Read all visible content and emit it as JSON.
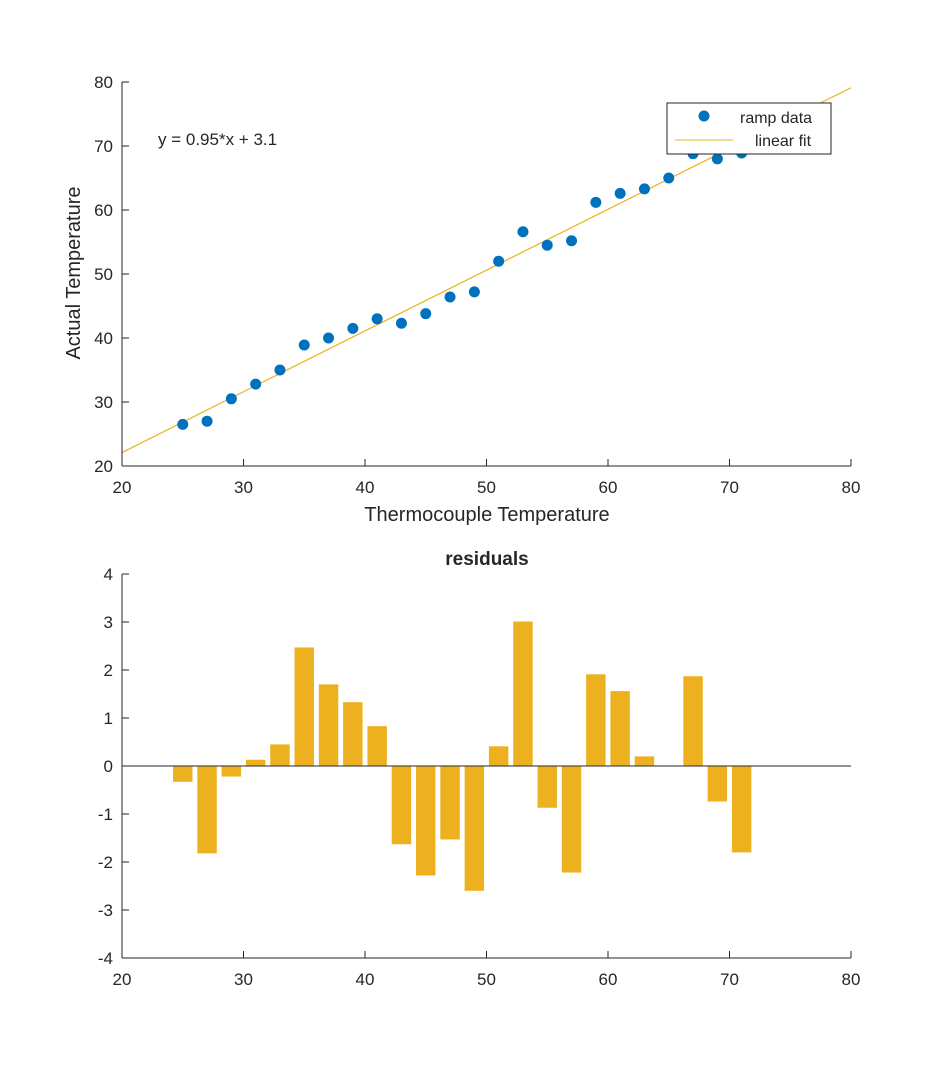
{
  "chart_data": [
    {
      "type": "scatter",
      "xlabel": "Thermocouple Temperature",
      "ylabel": "Actual Temperature",
      "xlim": [
        20,
        80
      ],
      "ylim": [
        20,
        80
      ],
      "xticks": [
        20,
        30,
        40,
        50,
        60,
        70,
        80
      ],
      "yticks": [
        20,
        30,
        40,
        50,
        60,
        70,
        80
      ],
      "legend_position": "top-right",
      "annotation": "y = 0.95*x + 3.1",
      "series": [
        {
          "name": "ramp data",
          "kind": "scatter",
          "color": "#0072BD",
          "x": [
            25,
            27,
            29,
            31,
            33,
            35,
            37,
            39,
            41,
            43,
            45,
            47,
            49,
            51,
            53,
            55,
            57,
            59,
            61,
            63,
            65,
            67,
            69,
            71
          ],
          "y": [
            26.5,
            27.0,
            30.5,
            32.8,
            35.0,
            38.9,
            40.0,
            41.5,
            43.0,
            42.3,
            43.8,
            46.4,
            47.2,
            52.0,
            56.6,
            54.5,
            55.2,
            61.2,
            62.6,
            63.3,
            65.0,
            68.8,
            68.0,
            68.9
          ]
        },
        {
          "name": "linear fit",
          "kind": "line",
          "color": "#EDB120",
          "slope": 0.95,
          "intercept": 3.1,
          "x": [
            20,
            80
          ]
        }
      ]
    },
    {
      "type": "bar",
      "title": "residuals",
      "xlim": [
        20,
        80
      ],
      "ylim": [
        -4,
        4
      ],
      "xticks": [
        20,
        30,
        40,
        50,
        60,
        70,
        80
      ],
      "yticks": [
        -4,
        -3,
        -2,
        -1,
        0,
        1,
        2,
        3,
        4
      ],
      "color": "#EDB120",
      "x": [
        25,
        27,
        29,
        31,
        33,
        35,
        37,
        39,
        41,
        43,
        45,
        47,
        49,
        51,
        53,
        55,
        57,
        59,
        61,
        63,
        65,
        67,
        69,
        71
      ],
      "values": [
        -0.33,
        -1.82,
        -0.22,
        0.13,
        0.45,
        2.47,
        1.7,
        1.33,
        0.83,
        -1.63,
        -2.28,
        -1.53,
        -2.6,
        0.41,
        3.01,
        -0.87,
        -2.22,
        1.91,
        1.56,
        0.2,
        0.0,
        1.87,
        -0.74,
        -1.8
      ]
    }
  ]
}
